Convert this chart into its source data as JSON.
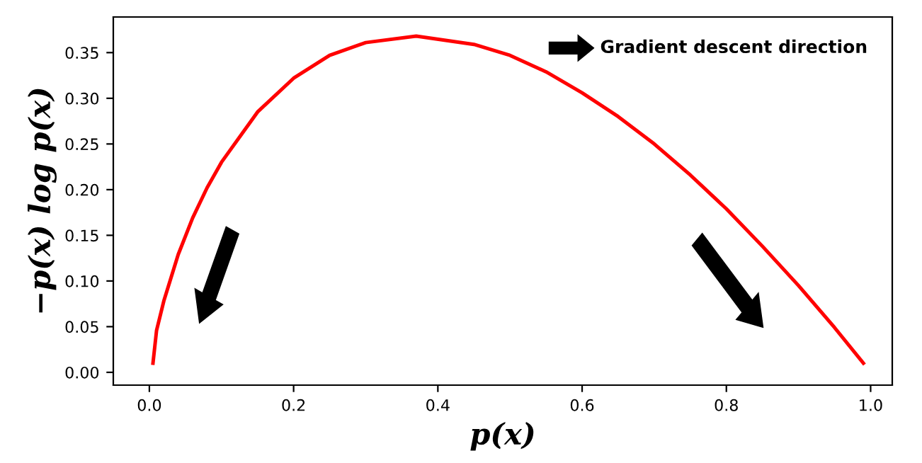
{
  "chart_data": {
    "type": "line",
    "xlabel": "p(x)",
    "ylabel": "−p(x) log p(x)",
    "x": [
      0.005,
      0.01,
      0.02,
      0.04,
      0.06,
      0.08,
      0.1,
      0.15,
      0.2,
      0.25,
      0.3,
      0.37,
      0.45,
      0.5,
      0.55,
      0.6,
      0.65,
      0.7,
      0.75,
      0.8,
      0.85,
      0.9,
      0.95,
      0.99
    ],
    "series": [
      {
        "color": "#ff0000",
        "values": [
          0.01,
          0.046,
          0.078,
          0.129,
          0.169,
          0.202,
          0.23,
          0.285,
          0.322,
          0.347,
          0.361,
          0.368,
          0.359,
          0.347,
          0.329,
          0.306,
          0.28,
          0.25,
          0.216,
          0.179,
          0.138,
          0.095,
          0.049,
          0.01
        ]
      }
    ],
    "xlim": [
      -0.05,
      1.03
    ],
    "ylim": [
      -0.014,
      0.389
    ],
    "xticks": [
      {
        "value": 0.0,
        "label": "0.0"
      },
      0.2,
      0.4,
      0.6,
      0.8,
      {
        "value": 1.0,
        "label": "1.0"
      }
    ],
    "yticks": [
      {
        "value": 0.0,
        "label": "0.00"
      },
      {
        "value": 0.05,
        "label": "0.05"
      },
      {
        "value": 0.1,
        "label": "0.10"
      },
      {
        "value": 0.15,
        "label": "0.15"
      },
      {
        "value": 0.2,
        "label": "0.20"
      },
      {
        "value": 0.25,
        "label": "0.25"
      },
      {
        "value": 0.3,
        "label": "0.30"
      },
      {
        "value": 0.35,
        "label": "0.35"
      }
    ],
    "annotations": [
      "Gradient descent direction"
    ],
    "grid": false,
    "legend": false,
    "marker": "none",
    "line_style": "solid"
  }
}
